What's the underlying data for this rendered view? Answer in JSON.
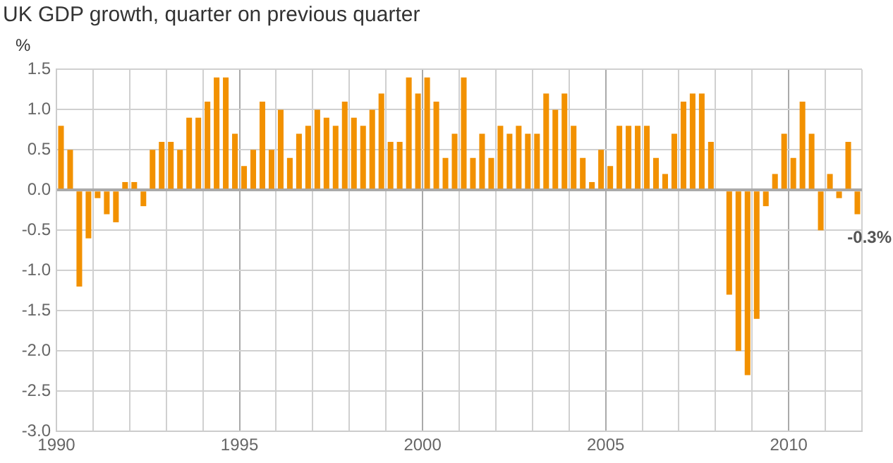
{
  "chart_data": {
    "type": "bar",
    "title": "UK GDP growth, quarter on previous quarter",
    "ylabel": "%",
    "x": [
      1990.125,
      1990.375,
      1990.625,
      1990.875,
      1991.125,
      1991.375,
      1991.625,
      1991.875,
      1992.125,
      1992.375,
      1992.625,
      1992.875,
      1993.125,
      1993.375,
      1993.625,
      1993.875,
      1994.125,
      1994.375,
      1994.625,
      1994.875,
      1995.125,
      1995.375,
      1995.625,
      1995.875,
      1996.125,
      1996.375,
      1996.625,
      1996.875,
      1997.125,
      1997.375,
      1997.625,
      1997.875,
      1998.125,
      1998.375,
      1998.625,
      1998.875,
      1999.125,
      1999.375,
      1999.625,
      1999.875,
      2000.125,
      2000.375,
      2000.625,
      2000.875,
      2001.125,
      2001.375,
      2001.625,
      2001.875,
      2002.125,
      2002.375,
      2002.625,
      2002.875,
      2003.125,
      2003.375,
      2003.625,
      2003.875,
      2004.125,
      2004.375,
      2004.625,
      2004.875,
      2005.125,
      2005.375,
      2005.625,
      2005.875,
      2006.125,
      2006.375,
      2006.625,
      2006.875,
      2007.125,
      2007.375,
      2007.625,
      2007.875,
      2008.125,
      2008.375,
      2008.625,
      2008.875,
      2009.125,
      2009.375,
      2009.625,
      2009.875,
      2010.125,
      2010.375,
      2010.625,
      2010.875,
      2011.125,
      2011.375,
      2011.625,
      2011.875
    ],
    "values": [
      0.8,
      0.5,
      -1.2,
      -0.6,
      -0.1,
      -0.3,
      -0.4,
      0.1,
      0.1,
      -0.2,
      0.5,
      0.6,
      0.6,
      0.5,
      0.9,
      0.9,
      1.1,
      1.4,
      1.4,
      0.7,
      0.3,
      0.5,
      1.1,
      0.5,
      1.0,
      0.4,
      0.7,
      0.8,
      1.0,
      0.9,
      0.8,
      1.1,
      0.9,
      0.8,
      1.0,
      1.2,
      0.6,
      0.6,
      1.4,
      1.2,
      1.4,
      1.1,
      0.4,
      0.7,
      1.4,
      0.4,
      0.7,
      0.4,
      0.8,
      0.7,
      0.8,
      0.7,
      0.7,
      1.2,
      1.0,
      1.2,
      0.8,
      0.4,
      0.1,
      0.5,
      0.3,
      0.8,
      0.8,
      0.8,
      0.8,
      0.4,
      0.2,
      0.7,
      1.1,
      1.2,
      1.2,
      0.6,
      0.0,
      -1.3,
      -2.0,
      -2.3,
      -1.6,
      -0.2,
      0.2,
      0.7,
      0.4,
      1.1,
      0.7,
      -0.5,
      0.2,
      -0.1,
      0.6,
      -0.3
    ],
    "color": "#f29100",
    "xlim": [
      1990,
      2012
    ],
    "xticks": [
      1990,
      {
        "value": 1991,
        "label": null
      },
      {
        "value": 1992,
        "label": null
      },
      {
        "value": 1993,
        "label": null
      },
      {
        "value": 1994,
        "label": null
      },
      1995,
      {
        "value": 1996,
        "label": null
      },
      {
        "value": 1997,
        "label": null
      },
      {
        "value": 1998,
        "label": null
      },
      {
        "value": 1999,
        "label": null
      },
      2000,
      {
        "value": 2001,
        "label": null
      },
      {
        "value": 2002,
        "label": null
      },
      {
        "value": 2003,
        "label": null
      },
      {
        "value": 2004,
        "label": null
      },
      2005,
      {
        "value": 2006,
        "label": null
      },
      {
        "value": 2007,
        "label": null
      },
      {
        "value": 2008,
        "label": null
      },
      {
        "value": 2009,
        "label": null
      },
      2010,
      {
        "value": 2011,
        "label": null
      },
      {
        "value": 2012,
        "label": null
      }
    ],
    "ylim": [
      -3.0,
      1.5
    ],
    "yticks": [
      {
        "value": -3,
        "label": "-3.0"
      },
      {
        "value": -2.5,
        "label": "-2.5"
      },
      {
        "value": -2,
        "label": "-2.0"
      },
      {
        "value": -1.5,
        "label": "-1.5"
      },
      {
        "value": -1,
        "label": "-1.0"
      },
      {
        "value": -0.5,
        "label": "-0.5"
      },
      {
        "value": 0,
        "label": "0.0"
      },
      {
        "value": 0.5,
        "label": "0.5"
      },
      {
        "value": 1,
        "label": "1.0"
      },
      {
        "value": 1.5,
        "label": "1.5"
      }
    ],
    "grid": true,
    "legend": false,
    "annotations": [
      {
        "text": "-0.3%",
        "x": 2011.875,
        "y": -0.3
      }
    ]
  }
}
